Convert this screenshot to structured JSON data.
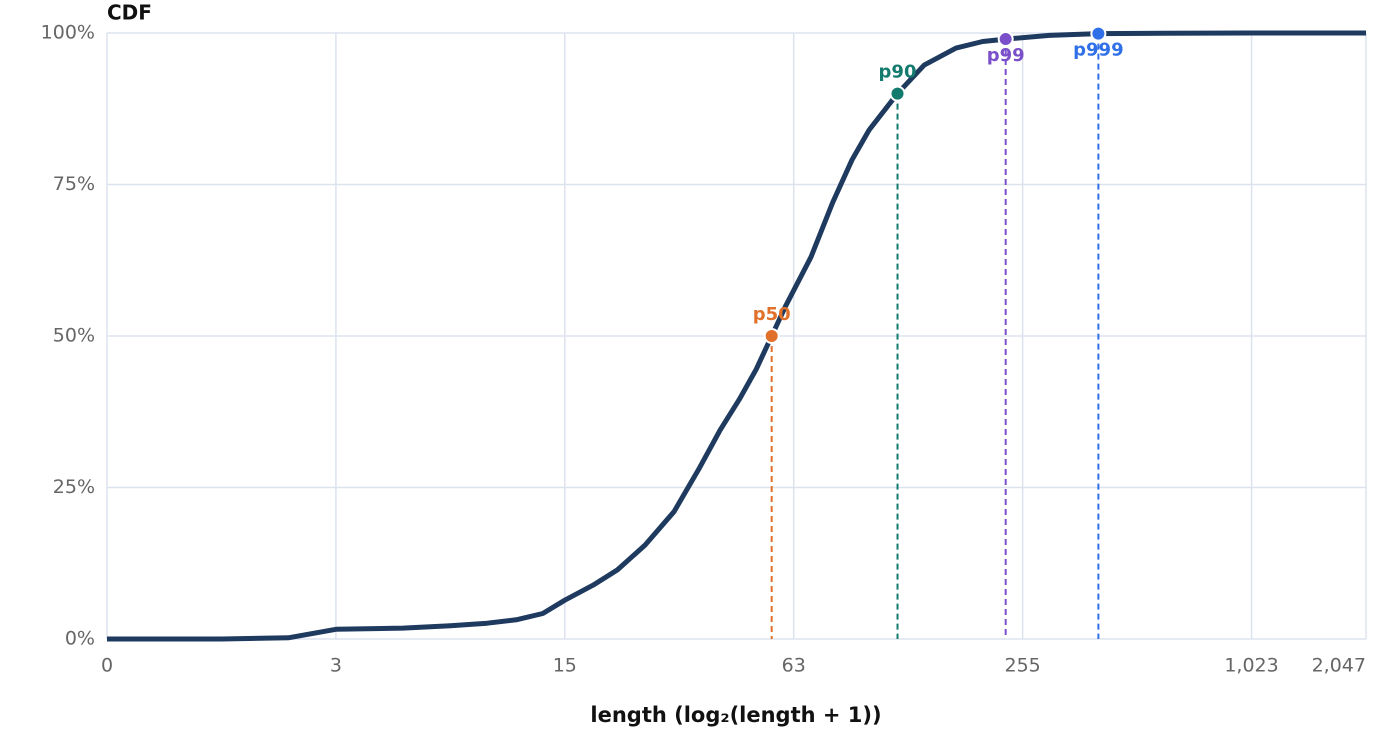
{
  "chart_data": {
    "type": "line",
    "title": "CDF",
    "x_label": "length (log₂(length + 1))",
    "x_scale": "log2p1",
    "xlim": [
      0,
      2047
    ],
    "xticks": [
      0,
      3,
      15,
      63,
      255,
      {
        "value": 1023,
        "label": "1,023"
      },
      {
        "value": 2047,
        "label": "2,047"
      }
    ],
    "ylim": [
      0,
      100
    ],
    "yticks": [
      {
        "value": 0,
        "label": "0%"
      },
      {
        "value": 25,
        "label": "25%"
      },
      {
        "value": 50,
        "label": "50%"
      },
      {
        "value": 75,
        "label": "75%"
      },
      {
        "value": 100,
        "label": "100%"
      }
    ],
    "grid": true,
    "series": [
      {
        "color": "#1f3a5f",
        "x": [
          0,
          1,
          2,
          3,
          5,
          7,
          9,
          11,
          13,
          15,
          18,
          21,
          25,
          30,
          35,
          40,
          45,
          50,
          55,
          60,
          70,
          80,
          90,
          100,
          119,
          140,
          170,
          200,
          230,
          300,
          404,
          600,
          1000,
          2047
        ],
        "values": [
          0,
          0,
          0.2,
          1.6,
          1.8,
          2.2,
          2.6,
          3.2,
          4.2,
          6.4,
          8.9,
          11.4,
          15.5,
          21,
          28,
          34.5,
          39.5,
          44.5,
          50,
          55,
          63,
          72,
          79,
          84,
          90,
          94.7,
          97.5,
          98.6,
          99,
          99.6,
          99.9,
          99.97,
          100,
          100
        ]
      }
    ],
    "percentiles": [
      {
        "name": "p50",
        "color": "#e0702a",
        "x": 55,
        "y": 50
      },
      {
        "name": "p90",
        "color": "#137a6e",
        "x": 119,
        "y": 90
      },
      {
        "name": "p99",
        "color": "#7b4fc9",
        "x": 230,
        "y": 99
      },
      {
        "name": "p999",
        "color": "#2f6fe8",
        "x": 404,
        "y": 99.9
      }
    ]
  }
}
